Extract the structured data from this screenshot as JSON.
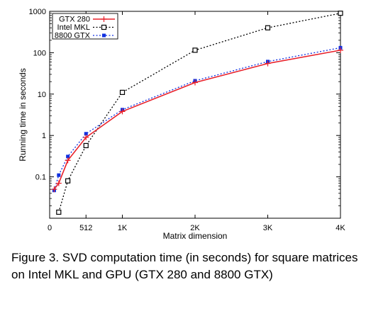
{
  "chart_data": {
    "type": "line",
    "title": "",
    "xlabel": "Matrix dimension",
    "ylabel": "Running time in seconds",
    "yscale": "log",
    "xlim": [
      0,
      4096
    ],
    "ylim": [
      0.01,
      1000
    ],
    "x_ticks": [
      {
        "value": 0,
        "label": "0"
      },
      {
        "value": 512,
        "label": "512"
      },
      {
        "value": 1024,
        "label": "1K"
      },
      {
        "value": 2048,
        "label": "2K"
      },
      {
        "value": 3072,
        "label": "3K"
      },
      {
        "value": 4096,
        "label": "4K"
      }
    ],
    "y_ticks": [
      {
        "value": 0.1,
        "label": "0.1"
      },
      {
        "value": 1,
        "label": "1"
      },
      {
        "value": 10,
        "label": "10"
      },
      {
        "value": 100,
        "label": "100"
      },
      {
        "value": 1000,
        "label": "1000"
      }
    ],
    "legend_position": "top-left",
    "series": [
      {
        "name": "GTX 280",
        "color": "#e8202a",
        "dash": "solid",
        "marker": "plus",
        "x": [
          64,
          128,
          256,
          512,
          1024,
          2048,
          3072,
          4096
        ],
        "y": [
          0.05,
          0.07,
          0.25,
          0.9,
          3.8,
          19,
          55,
          115
        ]
      },
      {
        "name": "Intel MKL",
        "color": "#000000",
        "dash": "dotted",
        "marker": "open-square",
        "x": [
          128,
          256,
          512,
          1024,
          2048,
          3072,
          4096
        ],
        "y": [
          0.014,
          0.08,
          0.57,
          11,
          115,
          400,
          900
        ]
      },
      {
        "name": "8800 GTX",
        "color": "#1030e0",
        "dash": "dotted",
        "marker": "filled-square",
        "x": [
          64,
          128,
          256,
          512,
          1024,
          2048,
          3072,
          4096
        ],
        "y": [
          0.047,
          0.11,
          0.31,
          1.1,
          4.2,
          21,
          61,
          132
        ]
      }
    ]
  },
  "caption": {
    "text": "Figure 3.  SVD computation time (in seconds) for square matrices on Intel MKL and GPU (GTX 280 and 8800 GTX)"
  }
}
